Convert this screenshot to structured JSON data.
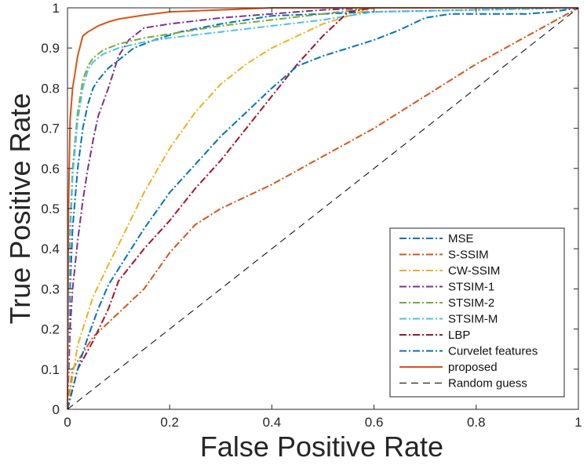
{
  "chart_data": {
    "type": "line",
    "title": "",
    "xlabel": "False Positive Rate",
    "ylabel": "True Positive Rate",
    "xlim": [
      0,
      1
    ],
    "ylim": [
      0,
      1
    ],
    "xticks": [
      "0",
      "0.2",
      "0.4",
      "0.6",
      "0.8",
      "1"
    ],
    "yticks": [
      "0",
      "0.1",
      "0.2",
      "0.3",
      "0.4",
      "0.5",
      "0.6",
      "0.7",
      "0.8",
      "0.9",
      "1"
    ],
    "grid": false,
    "legend_position": "bottom-right",
    "series": [
      {
        "name": "MSE",
        "color": "#0072BD",
        "dash": "dashdot",
        "x": [
          0,
          0.005,
          0.01,
          0.02,
          0.03,
          0.04,
          0.05,
          0.06,
          0.08,
          0.1,
          0.13,
          0.17,
          0.22,
          0.3,
          0.4,
          0.6,
          1
        ],
        "y": [
          0,
          0.3,
          0.45,
          0.6,
          0.7,
          0.76,
          0.8,
          0.82,
          0.85,
          0.87,
          0.9,
          0.92,
          0.94,
          0.96,
          0.98,
          0.99,
          1
        ]
      },
      {
        "name": "S-SSIM",
        "color": "#D95319",
        "dash": "dashdot",
        "x": [
          0,
          0.01,
          0.05,
          0.1,
          0.15,
          0.2,
          0.25,
          0.3,
          0.4,
          0.5,
          0.6,
          0.7,
          0.8,
          0.9,
          1
        ],
        "y": [
          0,
          0.1,
          0.18,
          0.24,
          0.3,
          0.39,
          0.46,
          0.5,
          0.56,
          0.63,
          0.7,
          0.78,
          0.86,
          0.93,
          1
        ]
      },
      {
        "name": "CW-SSIM",
        "color": "#EDB120",
        "dash": "dashdot",
        "x": [
          0,
          0.02,
          0.05,
          0.08,
          0.1,
          0.15,
          0.2,
          0.25,
          0.3,
          0.35,
          0.4,
          0.45,
          0.5,
          0.55,
          0.6,
          1
        ],
        "y": [
          0,
          0.16,
          0.28,
          0.36,
          0.41,
          0.54,
          0.65,
          0.74,
          0.81,
          0.86,
          0.9,
          0.93,
          0.96,
          0.98,
          1,
          1
        ]
      },
      {
        "name": "STSIM-1",
        "color": "#7E2F8E",
        "dash": "dashdot",
        "x": [
          0,
          0.005,
          0.01,
          0.02,
          0.03,
          0.04,
          0.05,
          0.06,
          0.08,
          0.1,
          0.12,
          0.15,
          0.2,
          0.3,
          0.4,
          0.5,
          0.6,
          1
        ],
        "y": [
          0,
          0.2,
          0.3,
          0.42,
          0.52,
          0.6,
          0.67,
          0.73,
          0.8,
          0.88,
          0.92,
          0.95,
          0.96,
          0.975,
          0.985,
          0.995,
          1,
          1
        ]
      },
      {
        "name": "STSIM-2",
        "color": "#77AC30",
        "dash": "dashdot",
        "x": [
          0,
          0.005,
          0.01,
          0.02,
          0.03,
          0.04,
          0.05,
          0.07,
          0.1,
          0.15,
          0.2,
          0.3,
          0.4,
          0.5,
          0.6,
          1
        ],
        "y": [
          0,
          0.45,
          0.6,
          0.74,
          0.82,
          0.855,
          0.875,
          0.895,
          0.91,
          0.925,
          0.935,
          0.955,
          0.97,
          0.985,
          1,
          1
        ]
      },
      {
        "name": "STSIM-M",
        "color": "#4DBEEE",
        "dash": "dashdot",
        "x": [
          0,
          0.005,
          0.01,
          0.02,
          0.03,
          0.04,
          0.05,
          0.07,
          0.1,
          0.15,
          0.2,
          0.3,
          0.4,
          0.5,
          0.6,
          1
        ],
        "y": [
          0,
          0.42,
          0.58,
          0.72,
          0.8,
          0.845,
          0.865,
          0.885,
          0.9,
          0.915,
          0.925,
          0.94,
          0.955,
          0.97,
          0.99,
          1
        ]
      },
      {
        "name": "LBP",
        "color": "#A2142F",
        "dash": "dashdot",
        "x": [
          0,
          0.01,
          0.02,
          0.05,
          0.08,
          0.1,
          0.15,
          0.2,
          0.25,
          0.3,
          0.35,
          0.4,
          0.45,
          0.5,
          0.55,
          0.6,
          1
        ],
        "y": [
          0,
          0.05,
          0.1,
          0.17,
          0.25,
          0.32,
          0.4,
          0.47,
          0.55,
          0.62,
          0.7,
          0.78,
          0.86,
          0.93,
          0.99,
          1,
          1
        ]
      },
      {
        "name": "Curvelet features",
        "color": "#0072BD",
        "dash": "dashdot",
        "x": [
          0,
          0.01,
          0.02,
          0.04,
          0.06,
          0.08,
          0.1,
          0.15,
          0.2,
          0.25,
          0.3,
          0.35,
          0.4,
          0.45,
          0.5,
          0.55,
          0.6,
          0.65,
          0.7,
          0.75,
          0.8,
          0.9,
          0.95,
          1
        ],
        "y": [
          0,
          0.05,
          0.1,
          0.18,
          0.25,
          0.31,
          0.35,
          0.45,
          0.54,
          0.61,
          0.68,
          0.74,
          0.8,
          0.855,
          0.88,
          0.9,
          0.92,
          0.945,
          0.975,
          0.985,
          0.985,
          0.985,
          0.99,
          1
        ]
      },
      {
        "name": "proposed",
        "color": "#D95319",
        "dash": "solid",
        "x": [
          0,
          0.002,
          0.005,
          0.01,
          0.015,
          0.02,
          0.03,
          0.04,
          0.06,
          0.08,
          0.1,
          0.15,
          0.2,
          0.3,
          0.4,
          0.6,
          1
        ],
        "y": [
          0,
          0.5,
          0.72,
          0.8,
          0.84,
          0.88,
          0.93,
          0.94,
          0.955,
          0.965,
          0.972,
          0.982,
          0.99,
          0.995,
          1,
          1,
          1
        ]
      },
      {
        "name": "Random guess",
        "color": "#000000",
        "dash": "dashed",
        "x": [
          0,
          1
        ],
        "y": [
          0,
          1
        ]
      }
    ]
  }
}
